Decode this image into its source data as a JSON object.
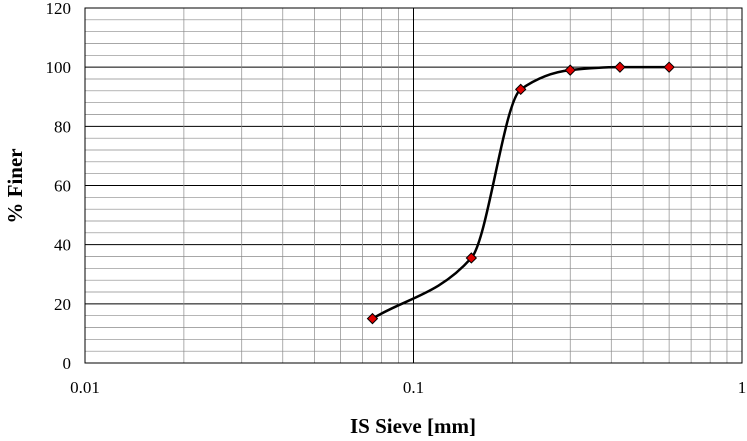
{
  "chart_data": {
    "type": "scatter",
    "title": "",
    "xlabel": "IS Sieve [mm]",
    "ylabel": "% Finer",
    "x_scale": "log",
    "xlim": [
      0.01,
      1
    ],
    "ylim": [
      0,
      120
    ],
    "x_tick_labels": [
      "0.01",
      "0.1",
      "1"
    ],
    "y_tick_labels": [
      "0",
      "20",
      "40",
      "60",
      "80",
      "100",
      "120"
    ],
    "grid": true,
    "legend": "none",
    "series": [
      {
        "x": [
          0.075,
          0.15,
          0.212,
          0.3,
          0.425,
          0.6
        ],
        "y": [
          15,
          35.5,
          92.5,
          99,
          100,
          100
        ],
        "line_color": "#000000",
        "marker": "diamond",
        "marker_color": "#e00000"
      }
    ]
  }
}
